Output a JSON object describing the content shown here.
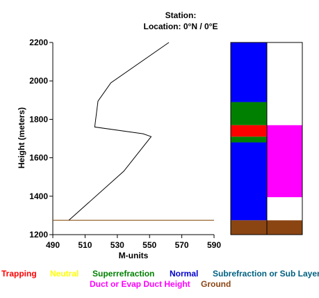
{
  "header": {
    "station_line": "Station:",
    "location_line": "Location:   0°N /   0°E"
  },
  "chart_data": {
    "type": "line",
    "xlabel": "M-units",
    "ylabel": "Height (meters)",
    "xlim": [
      490,
      590
    ],
    "ylim": [
      1200,
      2200
    ],
    "x_ticks": [
      490,
      510,
      530,
      550,
      570,
      590
    ],
    "y_ticks": [
      1200,
      1400,
      1600,
      1800,
      2000,
      2200
    ],
    "x_tick_labels": [
      "490",
      "510",
      "530",
      "550",
      "570",
      "590"
    ],
    "y_tick_labels": [
      "1200",
      "1400",
      "1600",
      "1800",
      "2000",
      "2200"
    ],
    "series": [
      {
        "color": "#000000",
        "x": [
          500,
          534,
          551,
          546,
          516,
          518,
          526,
          562
        ],
        "y": [
          1275,
          1530,
          1710,
          1725,
          1760,
          1895,
          1990,
          2200
        ]
      }
    ],
    "ground_level": {
      "y": 1275,
      "color": "#8b5a1a"
    },
    "condition_bars": {
      "left_column": [
        {
          "from": 1200,
          "to": 1275,
          "condition": "Ground",
          "color": "#8b4513"
        },
        {
          "from": 1275,
          "to": 1680,
          "condition": "Normal",
          "color": "#0000ff"
        },
        {
          "from": 1680,
          "to": 1710,
          "condition": "Superrefraction",
          "color": "#008000"
        },
        {
          "from": 1710,
          "to": 1770,
          "condition": "Trapping",
          "color": "#ff0000"
        },
        {
          "from": 1770,
          "to": 1890,
          "condition": "Superrefraction",
          "color": "#008000"
        },
        {
          "from": 1890,
          "to": 2200,
          "condition": "Normal",
          "color": "#0000ff"
        }
      ],
      "right_column": [
        {
          "from": 1200,
          "to": 1275,
          "condition": "Ground",
          "color": "#8b4513"
        },
        {
          "from": 1275,
          "to": 1395,
          "condition": "None",
          "color": "#ffffff"
        },
        {
          "from": 1395,
          "to": 1770,
          "condition": "Duct or Evap Duct Height",
          "color": "#ff00ff"
        },
        {
          "from": 1770,
          "to": 2200,
          "condition": "None",
          "color": "#ffffff"
        }
      ]
    }
  },
  "legend": {
    "trapping": {
      "label": "Trapping",
      "color": "#ff0000"
    },
    "neutral": {
      "label": "Neutral",
      "color": "#ffff00"
    },
    "superrefraction": {
      "label": "Superrefraction",
      "color": "#008000"
    },
    "normal": {
      "label": "Normal",
      "color": "#0000cd"
    },
    "subrefraction": {
      "label": "Subrefraction or Sub Layer",
      "color": "#006080"
    },
    "duct": {
      "label": "Duct or Evap Duct Height",
      "color": "#ff00ff"
    },
    "ground": {
      "label": "Ground",
      "color": "#8b4513"
    }
  }
}
